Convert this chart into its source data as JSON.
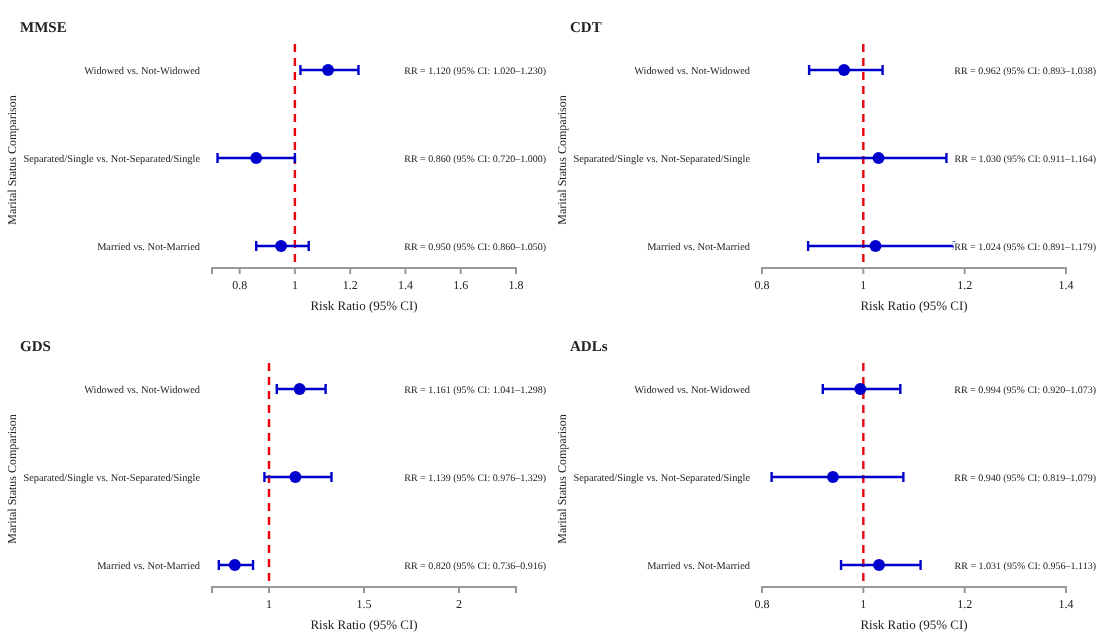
{
  "chart_data": [
    {
      "type": "scatter",
      "title": "MMSE",
      "xlabel": "Risk Ratio (95% CI)",
      "ylabel": "Marital Status Comparison",
      "orientation": "horizontal",
      "marker": "circle",
      "grid": false,
      "categories": [
        "Widowed vs. Not-Widowed",
        "Separated/Single vs. Not-Separated/Single",
        "Married vs. Not-Married"
      ],
      "series": [
        {
          "color": "#0000cc",
          "values": [
            1.12,
            0.86,
            0.95
          ],
          "errors": [
            [
              1.02,
              1.23
            ],
            [
              0.72,
              1.0
            ],
            [
              0.86,
              1.05
            ]
          ]
        }
      ],
      "annotations": [
        "RR = 1.120 (95% CI: 1.020–1.230)",
        "RR = 0.860 (95% CI: 0.720–1.000)",
        "RR = 0.950 (95% CI: 0.860–1.050)"
      ],
      "xlim": [
        0.7,
        1.8
      ],
      "xticks": [
        0.8,
        1,
        1.2,
        1.4,
        1.6,
        1.8
      ],
      "ref_lines": [
        {
          "axis": "x",
          "value": 1,
          "color": "#e8000b",
          "line_style": "dashed"
        }
      ]
    },
    {
      "type": "scatter",
      "title": "CDT",
      "xlabel": "Risk Ratio (95% CI)",
      "ylabel": "Marital Status Comparison",
      "orientation": "horizontal",
      "marker": "circle",
      "grid": false,
      "categories": [
        "Widowed vs. Not-Widowed",
        "Separated/Single vs. Not-Separated/Single",
        "Married vs. Not-Married"
      ],
      "series": [
        {
          "color": "#0000cc",
          "values": [
            0.962,
            1.03,
            1.024
          ],
          "errors": [
            [
              0.893,
              1.038
            ],
            [
              0.911,
              1.164
            ],
            [
              0.891,
              1.179
            ]
          ]
        }
      ],
      "annotations": [
        "RR = 0.962 (95% CI: 0.893–1.038)",
        "RR = 1.030 (95% CI: 0.911–1.164)",
        "RR = 1.024 (95% CI: 0.891–1.179)"
      ],
      "xlim": [
        0.8,
        1.4
      ],
      "xticks": [
        0.8,
        1,
        1.2,
        1.4
      ],
      "ref_lines": [
        {
          "axis": "x",
          "value": 1,
          "color": "#e8000b",
          "line_style": "dashed"
        }
      ]
    },
    {
      "type": "scatter",
      "title": "GDS",
      "xlabel": "Risk Ratio (95% CI)",
      "ylabel": "Marital Status Comparison",
      "orientation": "horizontal",
      "marker": "circle",
      "grid": false,
      "categories": [
        "Widowed vs. Not-Widowed",
        "Separated/Single vs. Not-Separated/Single",
        "Married vs. Not-Married"
      ],
      "series": [
        {
          "color": "#0000cc",
          "values": [
            1.161,
            1.139,
            0.82
          ],
          "errors": [
            [
              1.041,
              1.298
            ],
            [
              0.976,
              1.329
            ],
            [
              0.736,
              0.916
            ]
          ]
        }
      ],
      "annotations": [
        "RR = 1.161 (95% CI: 1.041–1.298)",
        "RR = 1.139 (95% CI: 0.976–1.329)",
        "RR = 0.820 (95% CI: 0.736–0.916)"
      ],
      "xlim": [
        0.7,
        2.3
      ],
      "xticks": [
        1,
        1.5,
        2
      ],
      "ref_lines": [
        {
          "axis": "x",
          "value": 1,
          "color": "#e8000b",
          "line_style": "dashed"
        }
      ]
    },
    {
      "type": "scatter",
      "title": "ADLs",
      "xlabel": "Risk Ratio (95% CI)",
      "ylabel": "Marital Status Comparison",
      "orientation": "horizontal",
      "marker": "circle",
      "grid": false,
      "categories": [
        "Widowed vs. Not-Widowed",
        "Separated/Single vs. Not-Separated/Single",
        "Married vs. Not-Married"
      ],
      "series": [
        {
          "color": "#0000cc",
          "values": [
            0.994,
            0.94,
            1.031
          ],
          "errors": [
            [
              0.92,
              1.073
            ],
            [
              0.819,
              1.079
            ],
            [
              0.956,
              1.113
            ]
          ]
        }
      ],
      "annotations": [
        "RR = 0.994 (95% CI: 0.920–1.073)",
        "RR = 0.940 (95% CI: 0.819–1.079)",
        "RR = 1.031 (95% CI: 0.956–1.113)"
      ],
      "xlim": [
        0.8,
        1.4
      ],
      "xticks": [
        0.8,
        1,
        1.2,
        1.4
      ],
      "ref_lines": [
        {
          "axis": "x",
          "value": 1,
          "color": "#e8000b",
          "line_style": "dashed"
        }
      ]
    }
  ]
}
